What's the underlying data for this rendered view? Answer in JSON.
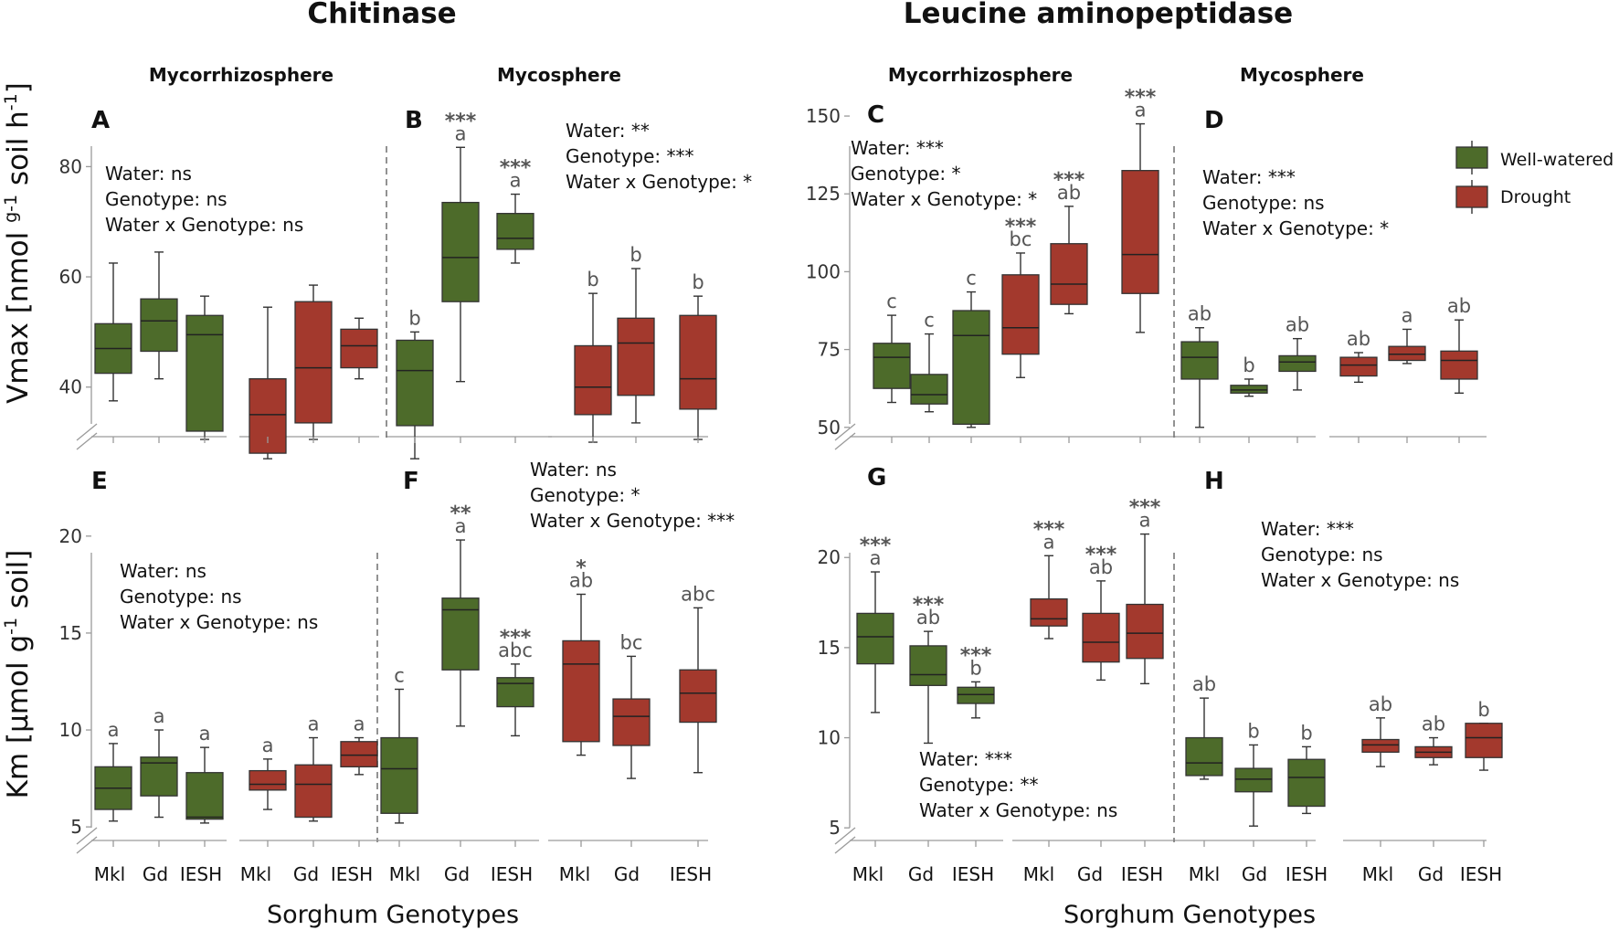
{
  "titles": {
    "left": "Chitinase",
    "right": "Leucine aminopeptidase"
  },
  "regions": {
    "myc": "Mycorrhizosphere",
    "mycos": "Mycosphere"
  },
  "y_titles": {
    "top_main": "Vmax [nmol ",
    "top_sup1": "g-1",
    "top_mid": " soil h",
    "top_sup2": "-1",
    "top_end": "]",
    "bottom_main": "Km [µmol g",
    "bottom_sup": "-1",
    "bottom_end": " soil]"
  },
  "x_title": "Sorghum Genotypes",
  "legend": {
    "well_watered": "Well-watered",
    "drought": "Drought"
  },
  "colors": {
    "well_watered": "#4d6b2a",
    "drought": "#a3392d"
  },
  "chart_data": [
    {
      "panel": "A",
      "type": "box",
      "enzyme": "Chitinase",
      "region": "Mycorrhizosphere",
      "ylabel": "Vmax [nmol g-1 soil h-1]",
      "ylim": [
        31,
        92
      ],
      "yticks": [
        40,
        60,
        80
      ],
      "stats": [
        "Water: ns",
        "Genotype: ns",
        "Water x Genotype: ns"
      ],
      "groups": [
        {
          "treatment": "Well-watered",
          "genotype": "Mkl",
          "min": 37.5,
          "q1": 42.5,
          "median": 47,
          "q3": 51.5,
          "max": 62.5,
          "stars": "",
          "letter": ""
        },
        {
          "treatment": "Well-watered",
          "genotype": "Gd",
          "min": 41.5,
          "q1": 46.5,
          "median": 52,
          "q3": 56,
          "max": 64.5,
          "stars": "",
          "letter": ""
        },
        {
          "treatment": "Well-watered",
          "genotype": "IESH",
          "min": 30.5,
          "q1": 32,
          "median": 49.5,
          "q3": 53,
          "max": 56.5,
          "stars": "",
          "letter": ""
        },
        {
          "treatment": "Drought",
          "genotype": "Mkl",
          "min": 27,
          "q1": 28,
          "median": 35,
          "q3": 41.5,
          "max": 54.5,
          "stars": "",
          "letter": ""
        },
        {
          "treatment": "Drought",
          "genotype": "Gd",
          "min": 30.5,
          "q1": 33.5,
          "median": 43.5,
          "q3": 55.5,
          "max": 58.5,
          "stars": "",
          "letter": ""
        },
        {
          "treatment": "Drought",
          "genotype": "IESH",
          "min": 41.5,
          "q1": 43.5,
          "median": 47.5,
          "q3": 50.5,
          "max": 52.5,
          "stars": "",
          "letter": ""
        }
      ]
    },
    {
      "panel": "B",
      "type": "box",
      "enzyme": "Chitinase",
      "region": "Mycosphere",
      "ylabel": "Vmax [nmol g-1 soil h-1]",
      "ylim": [
        31,
        92
      ],
      "yticks": [
        40,
        60,
        80
      ],
      "stats": [
        "Water: **",
        "Genotype: ***",
        "Water x Genotype: *"
      ],
      "groups": [
        {
          "treatment": "Well-watered",
          "genotype": "Mkl",
          "min": 27,
          "q1": 33,
          "median": 43,
          "q3": 48.5,
          "max": 50,
          "stars": "",
          "letter": "b"
        },
        {
          "treatment": "Well-watered",
          "genotype": "Gd",
          "min": 41,
          "q1": 55.5,
          "median": 63.5,
          "q3": 73.5,
          "max": 83.5,
          "stars": "***",
          "letter": "a"
        },
        {
          "treatment": "Well-watered",
          "genotype": "IESH",
          "min": 62.5,
          "q1": 65,
          "median": 67,
          "q3": 71.5,
          "max": 75,
          "stars": "***",
          "letter": "a"
        },
        {
          "treatment": "Drought",
          "genotype": "Mkl",
          "min": 30,
          "q1": 35,
          "median": 40,
          "q3": 47.5,
          "max": 57,
          "stars": "",
          "letter": "b"
        },
        {
          "treatment": "Drought",
          "genotype": "Gd",
          "min": 33.5,
          "q1": 38.5,
          "median": 48,
          "q3": 52.5,
          "max": 61.5,
          "stars": "",
          "letter": "b"
        },
        {
          "treatment": "Drought",
          "genotype": "IESH",
          "min": 30.5,
          "q1": 36,
          "median": 41.5,
          "q3": 53,
          "max": 56.5,
          "stars": "",
          "letter": "b"
        }
      ]
    },
    {
      "panel": "C",
      "type": "box",
      "enzyme": "Leucine aminopeptidase",
      "region": "Mycorrhizosphere",
      "ylabel": "Vmax [nmol g-1 soil h-1]",
      "ylim": [
        47,
        155
      ],
      "yticks": [
        50,
        75,
        100,
        125,
        150
      ],
      "stats": [
        "Water: ***",
        "Genotype: *",
        "Water x Genotype: *"
      ],
      "groups": [
        {
          "treatment": "Well-watered",
          "genotype": "Mkl",
          "min": 58,
          "q1": 62.5,
          "median": 72.5,
          "q3": 77,
          "max": 86,
          "stars": "",
          "letter": "c"
        },
        {
          "treatment": "Well-watered",
          "genotype": "Gd",
          "min": 55,
          "q1": 57.5,
          "median": 60.5,
          "q3": 67,
          "max": 80,
          "stars": "",
          "letter": "c"
        },
        {
          "treatment": "Well-watered",
          "genotype": "IESH",
          "min": 50,
          "q1": 51,
          "median": 79.5,
          "q3": 87.5,
          "max": 93.5,
          "stars": "",
          "letter": "c"
        },
        {
          "treatment": "Drought",
          "genotype": "Mkl",
          "min": 66,
          "q1": 73.5,
          "median": 82,
          "q3": 99,
          "max": 106,
          "stars": "***",
          "letter": "bc"
        },
        {
          "treatment": "Drought",
          "genotype": "Gd",
          "min": 86.5,
          "q1": 89.5,
          "median": 96,
          "q3": 109,
          "max": 121,
          "stars": "***",
          "letter": "ab"
        },
        {
          "treatment": "Drought",
          "genotype": "IESH",
          "min": 80.5,
          "q1": 93,
          "median": 105.5,
          "q3": 132.5,
          "max": 147.5,
          "stars": "***",
          "letter": "a"
        }
      ]
    },
    {
      "panel": "D",
      "type": "box",
      "enzyme": "Leucine aminopeptidase",
      "region": "Mycosphere",
      "ylabel": "Vmax [nmol g-1 soil h-1]",
      "ylim": [
        47,
        155
      ],
      "yticks": [
        50,
        75,
        100,
        125,
        150
      ],
      "stats": [
        "Water: ***",
        "Genotype: ns",
        "Water x Genotype: *"
      ],
      "groups": [
        {
          "treatment": "Well-watered",
          "genotype": "Mkl",
          "min": 50,
          "q1": 65.5,
          "median": 72.5,
          "q3": 77.5,
          "max": 82,
          "stars": "",
          "letter": "ab"
        },
        {
          "treatment": "Well-watered",
          "genotype": "Gd",
          "min": 60,
          "q1": 61,
          "median": 62,
          "q3": 63.5,
          "max": 65.5,
          "stars": "",
          "letter": "b"
        },
        {
          "treatment": "Well-watered",
          "genotype": "IESH",
          "min": 62,
          "q1": 68,
          "median": 71,
          "q3": 73,
          "max": 78.5,
          "stars": "",
          "letter": "ab"
        },
        {
          "treatment": "Drought",
          "genotype": "Mkl",
          "min": 64.5,
          "q1": 66.5,
          "median": 70,
          "q3": 72.5,
          "max": 74,
          "stars": "",
          "letter": "ab"
        },
        {
          "treatment": "Drought",
          "genotype": "Gd",
          "min": 70.5,
          "q1": 71.5,
          "median": 73.5,
          "q3": 76,
          "max": 81.5,
          "stars": "",
          "letter": "a"
        },
        {
          "treatment": "Drought",
          "genotype": "IESH",
          "min": 61,
          "q1": 65.5,
          "median": 71.5,
          "q3": 74.5,
          "max": 84.5,
          "stars": "",
          "letter": "ab"
        }
      ]
    },
    {
      "panel": "E",
      "type": "box",
      "enzyme": "Chitinase",
      "region": "Mycorrhizosphere",
      "ylabel": "Km [µmol g-1 soil]",
      "ylim": [
        4.3,
        21.5
      ],
      "yticks": [
        5,
        10,
        15,
        20
      ],
      "stats": [
        "Water: ns",
        "Genotype: ns",
        "Water x Genotype: ns"
      ],
      "groups": [
        {
          "treatment": "Well-watered",
          "genotype": "Mkl",
          "min": 5.3,
          "q1": 5.9,
          "median": 7.0,
          "q3": 8.1,
          "max": 9.3,
          "stars": "",
          "letter": "a"
        },
        {
          "treatment": "Well-watered",
          "genotype": "Gd",
          "min": 5.5,
          "q1": 6.6,
          "median": 8.3,
          "q3": 8.6,
          "max": 10.0,
          "stars": "",
          "letter": "a"
        },
        {
          "treatment": "Well-watered",
          "genotype": "IESH",
          "min": 5.2,
          "q1": 5.4,
          "median": 5.5,
          "q3": 7.8,
          "max": 9.1,
          "stars": "",
          "letter": "a"
        },
        {
          "treatment": "Drought",
          "genotype": "Mkl",
          "min": 5.9,
          "q1": 6.9,
          "median": 7.2,
          "q3": 7.9,
          "max": 8.5,
          "stars": "",
          "letter": "a"
        },
        {
          "treatment": "Drought",
          "genotype": "Gd",
          "min": 5.3,
          "q1": 5.5,
          "median": 7.2,
          "q3": 8.2,
          "max": 9.6,
          "stars": "",
          "letter": "a"
        },
        {
          "treatment": "Drought",
          "genotype": "IESH",
          "min": 7.7,
          "q1": 8.1,
          "median": 8.7,
          "q3": 9.4,
          "max": 9.6,
          "stars": "",
          "letter": "a"
        }
      ]
    },
    {
      "panel": "F",
      "type": "box",
      "enzyme": "Chitinase",
      "region": "Mycosphere",
      "ylabel": "Km [µmol g-1 soil]",
      "ylim": [
        4.3,
        21.5
      ],
      "yticks": [
        5,
        10,
        15,
        20
      ],
      "stats": [
        "Water: ns",
        "Genotype: *",
        "Water x Genotype: ***"
      ],
      "groups": [
        {
          "treatment": "Well-watered",
          "genotype": "Mkl",
          "min": 5.2,
          "q1": 5.7,
          "median": 8.0,
          "q3": 9.6,
          "max": 12.1,
          "stars": "",
          "letter": "c"
        },
        {
          "treatment": "Well-watered",
          "genotype": "Gd",
          "min": 10.2,
          "q1": 13.1,
          "median": 16.2,
          "q3": 16.8,
          "max": 19.8,
          "stars": "**",
          "letter": "a"
        },
        {
          "treatment": "Well-watered",
          "genotype": "IESH",
          "min": 9.7,
          "q1": 11.2,
          "median": 12.4,
          "q3": 12.7,
          "max": 13.4,
          "stars": "***",
          "letter": "abc"
        },
        {
          "treatment": "Drought",
          "genotype": "Mkl",
          "min": 8.7,
          "q1": 9.4,
          "median": 13.4,
          "q3": 14.6,
          "max": 17.0,
          "stars": "*",
          "letter": "ab"
        },
        {
          "treatment": "Drought",
          "genotype": "Gd",
          "min": 7.5,
          "q1": 9.2,
          "median": 10.7,
          "q3": 11.6,
          "max": 13.8,
          "stars": "",
          "letter": "bc"
        },
        {
          "treatment": "Drought",
          "genotype": "IESH",
          "min": 7.8,
          "q1": 10.4,
          "median": 11.9,
          "q3": 13.1,
          "max": 16.3,
          "stars": "",
          "letter": "abc"
        }
      ]
    },
    {
      "panel": "G",
      "type": "box",
      "enzyme": "Leucine aminopeptidase",
      "region": "Mycorrhizosphere",
      "ylabel": "Km [µmol g-1 soil]",
      "ylim": [
        4.3,
        22.8
      ],
      "yticks": [
        5,
        10,
        15,
        20
      ],
      "stats": [
        "Water: ***",
        "Genotype: **",
        "Water x Genotype: ns"
      ],
      "groups": [
        {
          "treatment": "Well-watered",
          "genotype": "Mkl",
          "min": 11.4,
          "q1": 14.1,
          "median": 15.6,
          "q3": 16.9,
          "max": 19.2,
          "stars": "***",
          "letter": "a"
        },
        {
          "treatment": "Well-watered",
          "genotype": "Gd",
          "min": 9.7,
          "q1": 12.9,
          "median": 13.5,
          "q3": 15.1,
          "max": 15.9,
          "stars": "***",
          "letter": "ab"
        },
        {
          "treatment": "Well-watered",
          "genotype": "IESH",
          "min": 11.1,
          "q1": 11.9,
          "median": 12.4,
          "q3": 12.8,
          "max": 13.1,
          "stars": "***",
          "letter": "b"
        },
        {
          "treatment": "Drought",
          "genotype": "Mkl",
          "min": 15.5,
          "q1": 16.2,
          "median": 16.6,
          "q3": 17.7,
          "max": 20.1,
          "stars": "***",
          "letter": "a"
        },
        {
          "treatment": "Drought",
          "genotype": "Gd",
          "min": 13.2,
          "q1": 14.2,
          "median": 15.3,
          "q3": 16.9,
          "max": 18.7,
          "stars": "***",
          "letter": "ab"
        },
        {
          "treatment": "Drought",
          "genotype": "IESH",
          "min": 13.0,
          "q1": 14.4,
          "median": 15.8,
          "q3": 17.4,
          "max": 21.3,
          "stars": "***",
          "letter": "a"
        }
      ]
    },
    {
      "panel": "H",
      "type": "box",
      "enzyme": "Leucine aminopeptidase",
      "region": "Mycosphere",
      "ylabel": "Km [µmol g-1 soil]",
      "ylim": [
        4.3,
        22.8
      ],
      "yticks": [
        5,
        10,
        15,
        20
      ],
      "stats": [
        "Water: ***",
        "Genotype: ns",
        "Water x Genotype: ns"
      ],
      "groups": [
        {
          "treatment": "Well-watered",
          "genotype": "Mkl",
          "min": 7.7,
          "q1": 7.9,
          "median": 8.6,
          "q3": 10.0,
          "max": 12.2,
          "stars": "",
          "letter": "ab"
        },
        {
          "treatment": "Well-watered",
          "genotype": "Gd",
          "min": 5.1,
          "q1": 7.0,
          "median": 7.7,
          "q3": 8.3,
          "max": 9.6,
          "stars": "",
          "letter": "b"
        },
        {
          "treatment": "Well-watered",
          "genotype": "IESH",
          "min": 5.8,
          "q1": 6.2,
          "median": 7.8,
          "q3": 8.8,
          "max": 9.5,
          "stars": "",
          "letter": "b"
        },
        {
          "treatment": "Drought",
          "genotype": "Mkl",
          "min": 8.4,
          "q1": 9.2,
          "median": 9.6,
          "q3": 9.9,
          "max": 11.1,
          "stars": "",
          "letter": "ab"
        },
        {
          "treatment": "Drought",
          "genotype": "Gd",
          "min": 8.5,
          "q1": 8.9,
          "median": 9.2,
          "q3": 9.5,
          "max": 10.0,
          "stars": "",
          "letter": "ab"
        },
        {
          "treatment": "Drought",
          "genotype": "IESH",
          "min": 8.2,
          "q1": 8.9,
          "median": 10.0,
          "q3": 10.8,
          "max": 10.8,
          "stars": "",
          "letter": "b"
        }
      ]
    }
  ]
}
